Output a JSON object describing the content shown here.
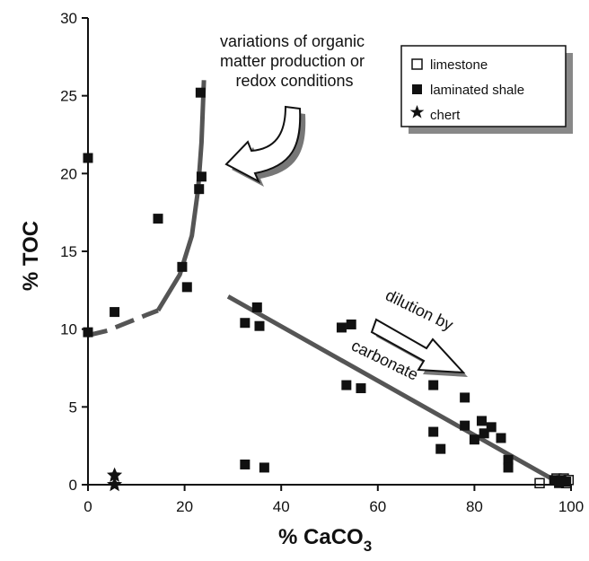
{
  "chart_data": {
    "type": "scatter",
    "xlabel": "% CaCO",
    "xlabel_sub": "3",
    "ylabel": "% TOC",
    "xlim": [
      0,
      100
    ],
    "ylim": [
      0,
      30
    ],
    "x_ticks": [
      0,
      20,
      40,
      60,
      80,
      100
    ],
    "y_ticks": [
      0,
      5,
      10,
      15,
      20,
      25,
      30
    ],
    "grid": false,
    "legend_position": "top-right",
    "legend": [
      {
        "label": "limestone",
        "marker": "open-square"
      },
      {
        "label": "laminated shale",
        "marker": "filled-square"
      },
      {
        "label": "chert",
        "marker": "star"
      }
    ],
    "series": [
      {
        "name": "limestone",
        "marker": "open-square",
        "points": [
          [
            93.5,
            0.1
          ],
          [
            97,
            0.4
          ],
          [
            98,
            0.2
          ],
          [
            98.5,
            0.4
          ],
          [
            99,
            0.1
          ],
          [
            99.5,
            0.3
          ]
        ]
      },
      {
        "name": "laminated shale",
        "marker": "filled-square",
        "points": [
          [
            0,
            21.0
          ],
          [
            0,
            9.8
          ],
          [
            5.5,
            11.1
          ],
          [
            14.5,
            17.1
          ],
          [
            19.5,
            14.0
          ],
          [
            20.5,
            12.7
          ],
          [
            23,
            19.0
          ],
          [
            23.3,
            25.2
          ],
          [
            23.5,
            19.8
          ],
          [
            32.5,
            10.4
          ],
          [
            32.5,
            1.3
          ],
          [
            35,
            11.4
          ],
          [
            35.5,
            10.2
          ],
          [
            36.5,
            1.1
          ],
          [
            52.5,
            10.1
          ],
          [
            53.5,
            6.4
          ],
          [
            54.5,
            10.3
          ],
          [
            56.5,
            6.2
          ],
          [
            71.5,
            6.4
          ],
          [
            71.5,
            3.4
          ],
          [
            73,
            2.3
          ],
          [
            78,
            5.6
          ],
          [
            78,
            3.8
          ],
          [
            80,
            2.9
          ],
          [
            81.5,
            4.1
          ],
          [
            82,
            3.3
          ],
          [
            83.5,
            3.7
          ],
          [
            85.5,
            3.0
          ],
          [
            87,
            1.6
          ],
          [
            87,
            1.1
          ],
          [
            96.5,
            0.3
          ],
          [
            97.5,
            0.1
          ],
          [
            98,
            0.3
          ],
          [
            99,
            0.2
          ]
        ]
      },
      {
        "name": "chert",
        "marker": "star",
        "points": [
          [
            5.5,
            0.6
          ],
          [
            5.5,
            0.0
          ]
        ]
      }
    ],
    "trend_lines": [
      {
        "kind": "dilution line",
        "from": [
          29,
          12.1
        ],
        "to": [
          96.5,
          0.3
        ]
      },
      {
        "kind": "organic curve solid",
        "points": [
          [
            14.5,
            11.2
          ],
          [
            19,
            13.5
          ],
          [
            21.5,
            16
          ],
          [
            22.8,
            19
          ],
          [
            23.5,
            22
          ],
          [
            24,
            26
          ]
        ]
      },
      {
        "kind": "organic curve dashed",
        "points": [
          [
            0,
            9.6
          ],
          [
            4,
            9.9
          ],
          [
            8,
            10.4
          ],
          [
            12,
            10.9
          ],
          [
            14.5,
            11.2
          ]
        ]
      }
    ],
    "annotations": [
      {
        "lines": [
          "variations of organic",
          "matter production or",
          "redox conditions"
        ]
      },
      {
        "lines": [
          "dilution by",
          "carbonate"
        ]
      }
    ]
  }
}
